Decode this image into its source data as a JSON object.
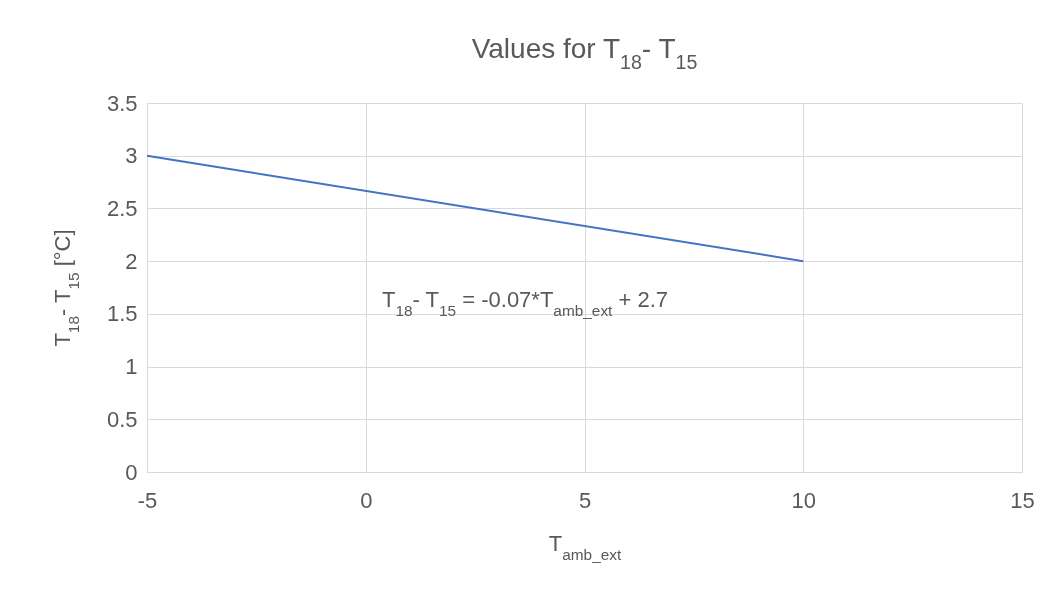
{
  "chart_data": {
    "type": "line",
    "title": "Values for T$_{18}$- T$_{15}$",
    "xlabel": "T$_{amb_ext}$",
    "ylabel": "T$_{18}$- T$_{15}$ [°C]",
    "x": [
      -5,
      10
    ],
    "series": [
      {
        "color": "#4472c4",
        "values": [
          3,
          2
        ]
      }
    ],
    "xlim": [
      -5,
      15
    ],
    "xticks": [
      -5,
      0,
      5,
      10,
      15
    ],
    "ylim": [
      0,
      3.5
    ],
    "yticks": [
      0,
      0.5,
      1,
      1.5,
      2,
      2.5,
      3,
      3.5
    ],
    "grid": true,
    "annotations": [
      "T$_{18}$- T$_{15}$ = -0.07*T$_{amb_ext}$ + 2.7"
    ]
  }
}
